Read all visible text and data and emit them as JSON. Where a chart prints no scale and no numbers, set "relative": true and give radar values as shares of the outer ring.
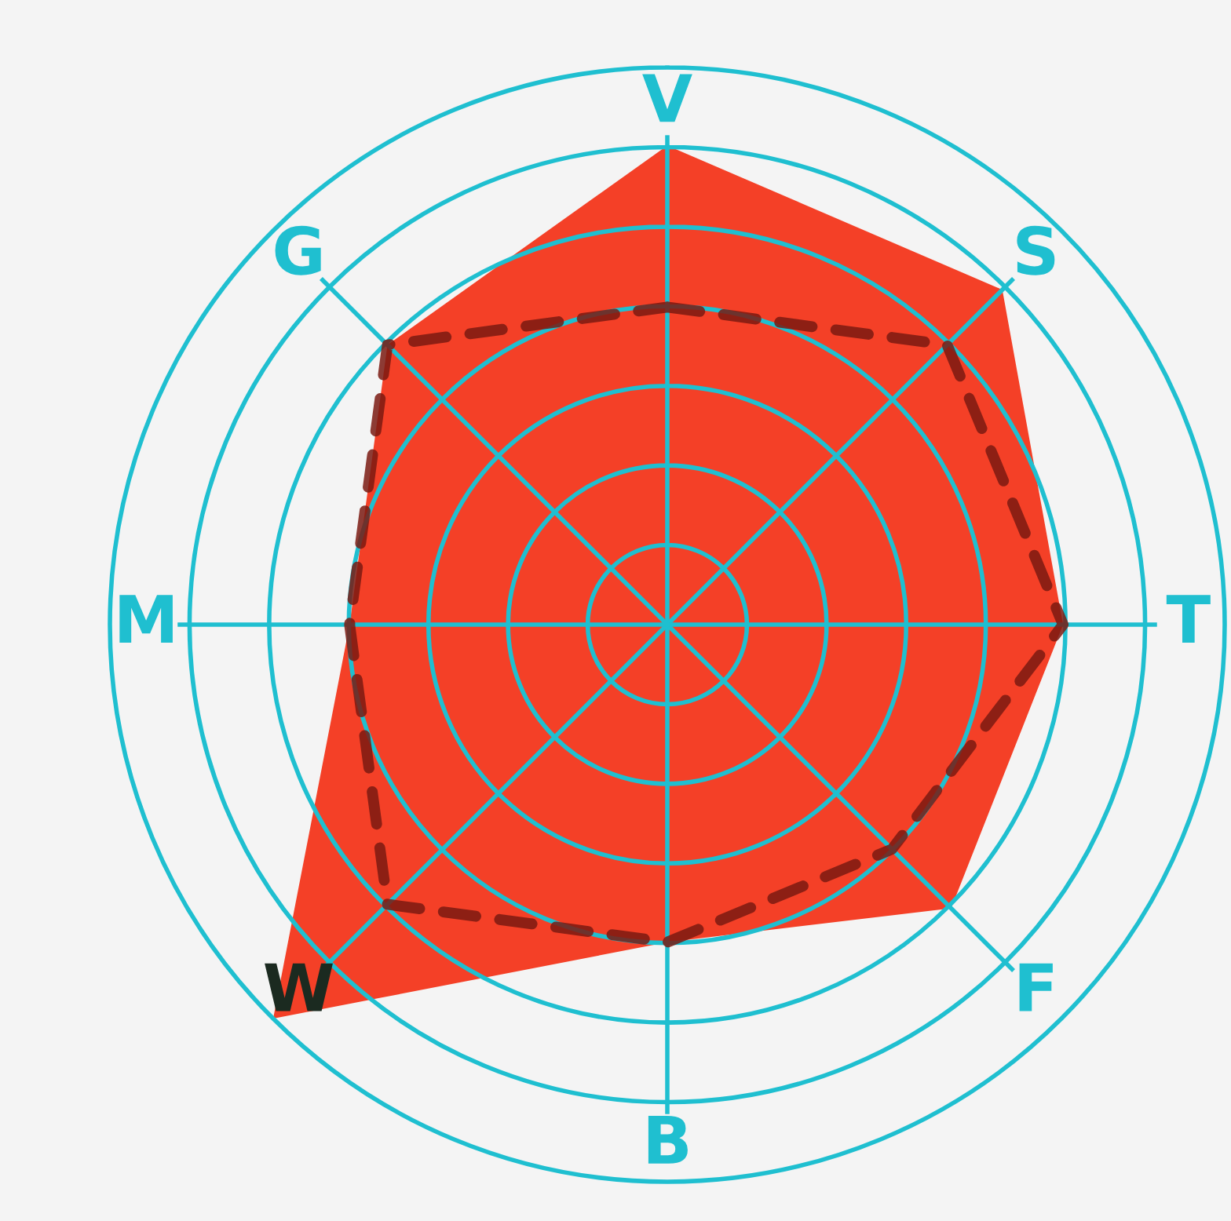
{
  "chart_data": {
    "type": "radar",
    "relative": true,
    "categories": [
      "V",
      "S",
      "T",
      "F",
      "B",
      "W",
      "M",
      "G"
    ],
    "grid": true,
    "legend": false,
    "series": [
      {
        "color": "#f44027",
        "values": [
          0.86,
          0.85,
          0.71,
          0.72,
          0.57,
          1.0,
          0.57,
          0.71
        ]
      },
      {
        "color": "#7a1a12",
        "line_style": "dashed",
        "values": [
          0.57,
          0.71,
          0.71,
          0.57,
          0.57,
          0.71,
          0.57,
          0.71
        ]
      }
    ]
  }
}
